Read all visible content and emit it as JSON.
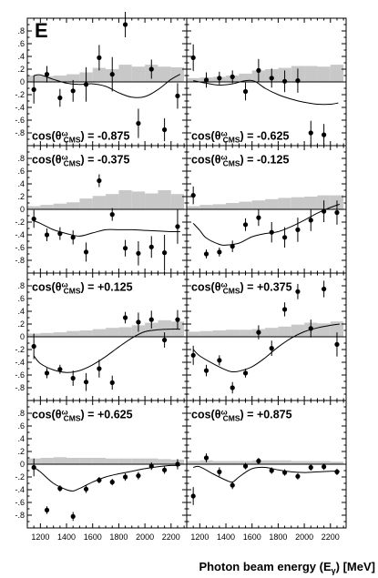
{
  "figure_label": "E",
  "x_title": {
    "prefix": "Photon beam energy (E",
    "sub": "γ",
    "suffix": ") [MeV]"
  },
  "label_parts": {
    "cos": "cos(θ",
    "sub": "CMS",
    "sup": "ω",
    "eq": ") = "
  },
  "colors": {
    "hist": "#c8c8c8",
    "points": "#000000",
    "curve": "#000000",
    "axes": "#000000"
  },
  "chart_data": {
    "type": "scatter",
    "layout": "4 rows x 2 columns, shared axes",
    "xlim": [
      1100,
      2320
    ],
    "ylim": [
      -1.0,
      1.0
    ],
    "x_ticks": [
      1200,
      1400,
      1600,
      1800,
      2000,
      2200
    ],
    "y_ticks": [
      -0.8,
      -0.6,
      -0.4,
      -0.2,
      0,
      0.2,
      0.4,
      0.6,
      0.8
    ],
    "grid": false,
    "panels": [
      {
        "label": "-0.875",
        "points": [
          {
            "x": 1150,
            "y": -0.12,
            "err": 0.22
          },
          {
            "x": 1250,
            "y": 0.12,
            "err": 0.13
          },
          {
            "x": 1350,
            "y": -0.25,
            "err": 0.14
          },
          {
            "x": 1450,
            "y": -0.14,
            "err": 0.17
          },
          {
            "x": 1550,
            "y": -0.04,
            "err": 0.27
          },
          {
            "x": 1650,
            "y": 0.38,
            "err": 0.2
          },
          {
            "x": 1750,
            "y": 0.12,
            "err": 0.27
          },
          {
            "x": 1850,
            "y": 0.9,
            "err": 0.2
          },
          {
            "x": 1950,
            "y": -0.65,
            "err": 0.23
          },
          {
            "x": 2050,
            "y": 0.2,
            "err": 0.15
          },
          {
            "x": 2150,
            "y": -0.75,
            "err": 0.18
          },
          {
            "x": 2250,
            "y": -0.22,
            "err": 0.2
          }
        ],
        "curve": [
          [
            1150,
            0.1
          ],
          [
            1200,
            0.11
          ],
          [
            1300,
            0.04
          ],
          [
            1400,
            -0.02
          ],
          [
            1500,
            -0.04
          ],
          [
            1600,
            -0.03
          ],
          [
            1700,
            -0.07
          ],
          [
            1800,
            -0.17
          ],
          [
            1900,
            -0.24
          ],
          [
            2000,
            -0.23
          ],
          [
            2100,
            -0.12
          ],
          [
            2200,
            0.04
          ],
          [
            2270,
            0.12
          ]
        ],
        "hist": [
          0.1,
          0.09,
          0.1,
          0.12,
          0.15,
          0.22,
          0.2,
          0.27,
          0.24,
          0.27,
          0.24,
          0.23
        ]
      },
      {
        "label": "-0.625",
        "points": [
          {
            "x": 1150,
            "y": 0.38,
            "err": 0.21
          },
          {
            "x": 1250,
            "y": 0.03,
            "err": 0.12
          },
          {
            "x": 1350,
            "y": 0.06,
            "err": 0.1
          },
          {
            "x": 1450,
            "y": 0.08,
            "err": 0.1
          },
          {
            "x": 1550,
            "y": -0.15,
            "err": 0.14
          },
          {
            "x": 1650,
            "y": 0.18,
            "err": 0.18
          },
          {
            "x": 1750,
            "y": 0.06,
            "err": 0.15
          },
          {
            "x": 1850,
            "y": 0.01,
            "err": 0.17
          },
          {
            "x": 1950,
            "y": 0.02,
            "err": 0.19
          },
          {
            "x": 2050,
            "y": -0.8,
            "err": 0.19
          },
          {
            "x": 2150,
            "y": -0.83,
            "err": 0.17
          }
        ],
        "curve": [
          [
            1150,
            0.02
          ],
          [
            1250,
            -0.02
          ],
          [
            1350,
            -0.05
          ],
          [
            1450,
            -0.03
          ],
          [
            1550,
            0.02
          ],
          [
            1620,
            0.01
          ],
          [
            1700,
            -0.1
          ],
          [
            1800,
            -0.2
          ],
          [
            1900,
            -0.27
          ],
          [
            2000,
            -0.32
          ],
          [
            2100,
            -0.35
          ],
          [
            2200,
            -0.35
          ],
          [
            2260,
            -0.33
          ]
        ],
        "hist": [
          0.06,
          0.07,
          0.08,
          0.1,
          0.13,
          0.18,
          0.2,
          0.22,
          0.25,
          0.25,
          0.24,
          0.27
        ]
      },
      {
        "label": "-0.375",
        "points": [
          {
            "x": 1150,
            "y": -0.15,
            "err": 0.14
          },
          {
            "x": 1250,
            "y": -0.4,
            "err": 0.1
          },
          {
            "x": 1350,
            "y": -0.38,
            "err": 0.1
          },
          {
            "x": 1450,
            "y": -0.44,
            "err": 0.11
          },
          {
            "x": 1550,
            "y": -0.67,
            "err": 0.15
          },
          {
            "x": 1650,
            "y": 0.45,
            "err": 0.1
          },
          {
            "x": 1750,
            "y": -0.08,
            "err": 0.1
          },
          {
            "x": 1850,
            "y": -0.61,
            "err": 0.13
          },
          {
            "x": 1950,
            "y": -0.69,
            "err": 0.19
          },
          {
            "x": 2050,
            "y": -0.59,
            "err": 0.17
          },
          {
            "x": 2150,
            "y": -0.68,
            "err": 0.28
          },
          {
            "x": 2250,
            "y": -0.27,
            "err": 0.27
          }
        ],
        "curve": [
          [
            1150,
            -0.18
          ],
          [
            1200,
            -0.22
          ],
          [
            1300,
            -0.32
          ],
          [
            1400,
            -0.38
          ],
          [
            1500,
            -0.42
          ],
          [
            1600,
            -0.37
          ],
          [
            1700,
            -0.32
          ],
          [
            1800,
            -0.32
          ],
          [
            1900,
            -0.32
          ],
          [
            2000,
            -0.33
          ],
          [
            2100,
            -0.34
          ],
          [
            2200,
            -0.35
          ],
          [
            2270,
            -0.35
          ]
        ],
        "hist": [
          0.05,
          0.07,
          0.09,
          0.11,
          0.17,
          0.21,
          0.24,
          0.3,
          0.28,
          0.25,
          0.3,
          0.24
        ]
      },
      {
        "label": "-0.125",
        "points": [
          {
            "x": 1150,
            "y": 0.22,
            "err": 0.14
          },
          {
            "x": 1250,
            "y": -0.7,
            "err": 0.07
          },
          {
            "x": 1350,
            "y": -0.67,
            "err": 0.07
          },
          {
            "x": 1450,
            "y": -0.58,
            "err": 0.09
          },
          {
            "x": 1550,
            "y": -0.24,
            "err": 0.1
          },
          {
            "x": 1650,
            "y": -0.13,
            "err": 0.13
          },
          {
            "x": 1750,
            "y": -0.36,
            "err": 0.16
          },
          {
            "x": 1850,
            "y": -0.44,
            "err": 0.16
          },
          {
            "x": 1950,
            "y": -0.32,
            "err": 0.19
          },
          {
            "x": 2050,
            "y": -0.17,
            "err": 0.17
          },
          {
            "x": 2150,
            "y": -0.03,
            "err": 0.17
          },
          {
            "x": 2250,
            "y": -0.05,
            "err": 0.19
          }
        ],
        "curve": [
          [
            1150,
            -0.22
          ],
          [
            1200,
            -0.33
          ],
          [
            1250,
            -0.45
          ],
          [
            1350,
            -0.55
          ],
          [
            1400,
            -0.56
          ],
          [
            1500,
            -0.53
          ],
          [
            1600,
            -0.43
          ],
          [
            1700,
            -0.38
          ],
          [
            1800,
            -0.35
          ],
          [
            1900,
            -0.27
          ],
          [
            2000,
            -0.17
          ],
          [
            2100,
            -0.06
          ],
          [
            2200,
            0.03
          ],
          [
            2270,
            0.08
          ]
        ],
        "hist": [
          0.05,
          0.07,
          0.08,
          0.1,
          0.12,
          0.14,
          0.16,
          0.18,
          0.19,
          0.2,
          0.22,
          0.22
        ]
      },
      {
        "label": "+0.125",
        "points": [
          {
            "x": 1150,
            "y": -0.15,
            "err": 0.2
          },
          {
            "x": 1250,
            "y": -0.57,
            "err": 0.08
          },
          {
            "x": 1350,
            "y": -0.51,
            "err": 0.07
          },
          {
            "x": 1450,
            "y": -0.65,
            "err": 0.12
          },
          {
            "x": 1550,
            "y": -0.71,
            "err": 0.14
          },
          {
            "x": 1650,
            "y": -0.5,
            "err": 0.14
          },
          {
            "x": 1750,
            "y": -0.72,
            "err": 0.11
          },
          {
            "x": 1850,
            "y": 0.3,
            "err": 0.09
          },
          {
            "x": 1950,
            "y": 0.23,
            "err": 0.15
          },
          {
            "x": 2050,
            "y": 0.27,
            "err": 0.14
          },
          {
            "x": 2150,
            "y": -0.05,
            "err": 0.12
          },
          {
            "x": 2250,
            "y": 0.27,
            "err": 0.15
          }
        ],
        "curve": [
          [
            1150,
            -0.3
          ],
          [
            1200,
            -0.42
          ],
          [
            1300,
            -0.52
          ],
          [
            1400,
            -0.56
          ],
          [
            1500,
            -0.53
          ],
          [
            1600,
            -0.44
          ],
          [
            1700,
            -0.31
          ],
          [
            1800,
            -0.16
          ],
          [
            1900,
            -0.02
          ],
          [
            2000,
            0.08
          ],
          [
            2100,
            0.11
          ],
          [
            2200,
            0.12
          ],
          [
            2270,
            0.12
          ]
        ],
        "hist": [
          0.05,
          0.06,
          0.07,
          0.09,
          0.1,
          0.12,
          0.14,
          0.15,
          0.18,
          0.22,
          0.26,
          0.24
        ]
      },
      {
        "label": "+0.375",
        "points": [
          {
            "x": 1150,
            "y": -0.29,
            "err": 0.15
          },
          {
            "x": 1250,
            "y": -0.53,
            "err": 0.09
          },
          {
            "x": 1350,
            "y": -0.37,
            "err": 0.08
          },
          {
            "x": 1450,
            "y": -0.8,
            "err": 0.09
          },
          {
            "x": 1550,
            "y": -0.57,
            "err": 0.07
          },
          {
            "x": 1650,
            "y": 0.07,
            "err": 0.11
          },
          {
            "x": 1750,
            "y": -0.18,
            "err": 0.12
          },
          {
            "x": 1850,
            "y": 0.43,
            "err": 0.11
          },
          {
            "x": 1950,
            "y": 0.71,
            "err": 0.12
          },
          {
            "x": 2050,
            "y": 0.13,
            "err": 0.14
          },
          {
            "x": 2150,
            "y": 0.75,
            "err": 0.13
          },
          {
            "x": 2250,
            "y": -0.12,
            "err": 0.19
          }
        ],
        "curve": [
          [
            1150,
            -0.2
          ],
          [
            1200,
            -0.3
          ],
          [
            1300,
            -0.42
          ],
          [
            1400,
            -0.52
          ],
          [
            1450,
            -0.55
          ],
          [
            1500,
            -0.54
          ],
          [
            1600,
            -0.47
          ],
          [
            1700,
            -0.33
          ],
          [
            1800,
            -0.16
          ],
          [
            1900,
            -0.02
          ],
          [
            2000,
            0.08
          ],
          [
            2100,
            0.14
          ],
          [
            2200,
            0.18
          ],
          [
            2270,
            0.2
          ]
        ],
        "hist": [
          0.08,
          0.09,
          0.1,
          0.11,
          0.11,
          0.12,
          0.14,
          0.16,
          0.19,
          0.22,
          0.21,
          0.24
        ]
      },
      {
        "label": "+0.625",
        "points": [
          {
            "x": 1150,
            "y": -0.05,
            "err": 0.14
          },
          {
            "x": 1250,
            "y": -0.72,
            "err": 0.06
          },
          {
            "x": 1350,
            "y": -0.38,
            "err": 0.05
          },
          {
            "x": 1450,
            "y": -0.82,
            "err": 0.07
          },
          {
            "x": 1550,
            "y": -0.39,
            "err": 0.06
          },
          {
            "x": 1650,
            "y": -0.25,
            "err": 0.05
          },
          {
            "x": 1750,
            "y": -0.28,
            "err": 0.05
          },
          {
            "x": 1850,
            "y": -0.2,
            "err": 0.06
          },
          {
            "x": 1950,
            "y": -0.18,
            "err": 0.06
          },
          {
            "x": 2050,
            "y": -0.03,
            "err": 0.06
          },
          {
            "x": 2150,
            "y": -0.09,
            "err": 0.06
          },
          {
            "x": 2250,
            "y": 0.0,
            "err": 0.08
          }
        ],
        "curve": [
          [
            1150,
            -0.05
          ],
          [
            1200,
            -0.12
          ],
          [
            1300,
            -0.3
          ],
          [
            1400,
            -0.4
          ],
          [
            1450,
            -0.42
          ],
          [
            1500,
            -0.38
          ],
          [
            1600,
            -0.28
          ],
          [
            1700,
            -0.2
          ],
          [
            1800,
            -0.15
          ],
          [
            1900,
            -0.11
          ],
          [
            2000,
            -0.07
          ],
          [
            2100,
            -0.04
          ],
          [
            2200,
            -0.02
          ],
          [
            2270,
            -0.02
          ]
        ],
        "hist": [
          0.09,
          0.1,
          0.11,
          0.1,
          0.1,
          0.1,
          0.09,
          0.09,
          0.09,
          0.09,
          0.08,
          0.07
        ]
      },
      {
        "label": "+0.875",
        "points": [
          {
            "x": 1150,
            "y": -0.5,
            "err": 0.14
          },
          {
            "x": 1250,
            "y": 0.1,
            "err": 0.07
          },
          {
            "x": 1350,
            "y": -0.12,
            "err": 0.07
          },
          {
            "x": 1450,
            "y": -0.33,
            "err": 0.06
          },
          {
            "x": 1550,
            "y": -0.03,
            "err": 0.05
          },
          {
            "x": 1650,
            "y": 0.05,
            "err": 0.05
          },
          {
            "x": 1750,
            "y": -0.1,
            "err": 0.05
          },
          {
            "x": 1850,
            "y": -0.13,
            "err": 0.05
          },
          {
            "x": 1950,
            "y": -0.19,
            "err": 0.05
          },
          {
            "x": 2050,
            "y": -0.05,
            "err": 0.05
          },
          {
            "x": 2150,
            "y": -0.04,
            "err": 0.05
          },
          {
            "x": 2250,
            "y": -0.12,
            "err": 0.05
          }
        ],
        "curve": [
          [
            1150,
            -0.05
          ],
          [
            1200,
            -0.04
          ],
          [
            1300,
            -0.15
          ],
          [
            1400,
            -0.25
          ],
          [
            1450,
            -0.28
          ],
          [
            1500,
            -0.2
          ],
          [
            1600,
            -0.07
          ],
          [
            1700,
            -0.05
          ],
          [
            1800,
            -0.09
          ],
          [
            1900,
            -0.12
          ],
          [
            2000,
            -0.13
          ],
          [
            2100,
            -0.12
          ],
          [
            2200,
            -0.11
          ],
          [
            2270,
            -0.11
          ]
        ],
        "hist": [
          0.05,
          0.06,
          0.05,
          0.05,
          0.05,
          0.06,
          0.06,
          0.06,
          0.05,
          0.05,
          0.05,
          0.04
        ]
      }
    ]
  }
}
